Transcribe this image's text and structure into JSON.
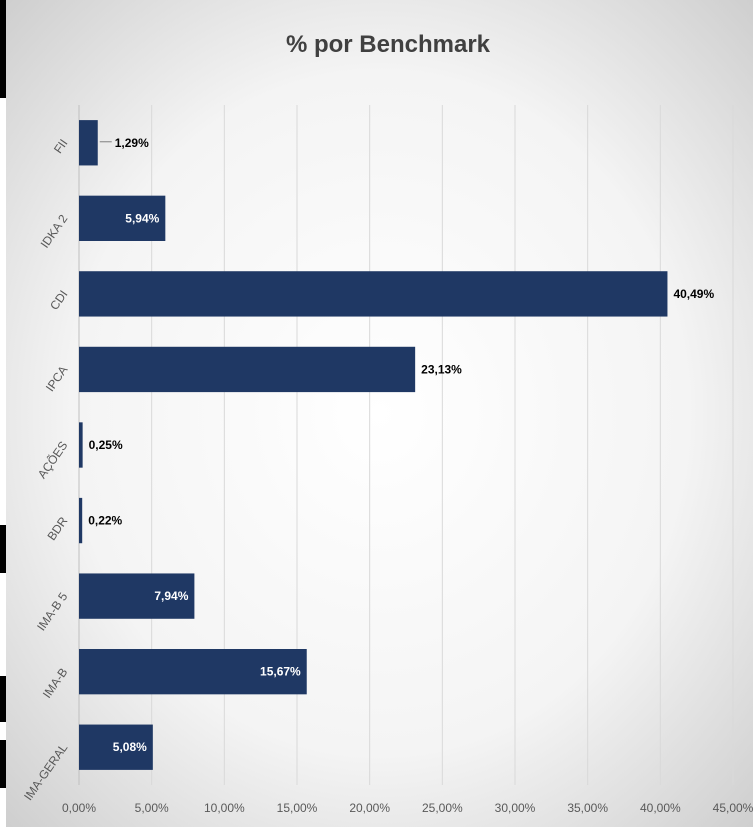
{
  "chart_data": {
    "type": "bar",
    "orientation": "horizontal",
    "title": "% por Benchmark",
    "xlabel": "",
    "ylabel": "",
    "categories": [
      "FII",
      "IDKA 2",
      "CDI",
      "IPCA",
      "AÇÕES",
      "BDR",
      "IMA-B 5",
      "IMA-B",
      "IMA-GERAL"
    ],
    "values": [
      1.29,
      5.94,
      40.49,
      23.13,
      0.25,
      0.22,
      7.94,
      15.67,
      5.08
    ],
    "data_labels": [
      "1,29%",
      "5,94%",
      "40,49%",
      "23,13%",
      "0,25%",
      "0,22%",
      "7,94%",
      "15,67%",
      "5,08%"
    ],
    "xlim": [
      0,
      45
    ],
    "x_ticks": [
      0,
      5,
      10,
      15,
      20,
      25,
      30,
      35,
      40,
      45
    ],
    "x_tick_labels": [
      "0,00%",
      "5,00%",
      "10,00%",
      "15,00%",
      "20,00%",
      "25,00%",
      "30,00%",
      "35,00%",
      "40,00%",
      "45,00%"
    ],
    "grid": true,
    "legend": "none",
    "bar_color": "#1f3864",
    "background": "radial-gradient white-to-grey"
  }
}
